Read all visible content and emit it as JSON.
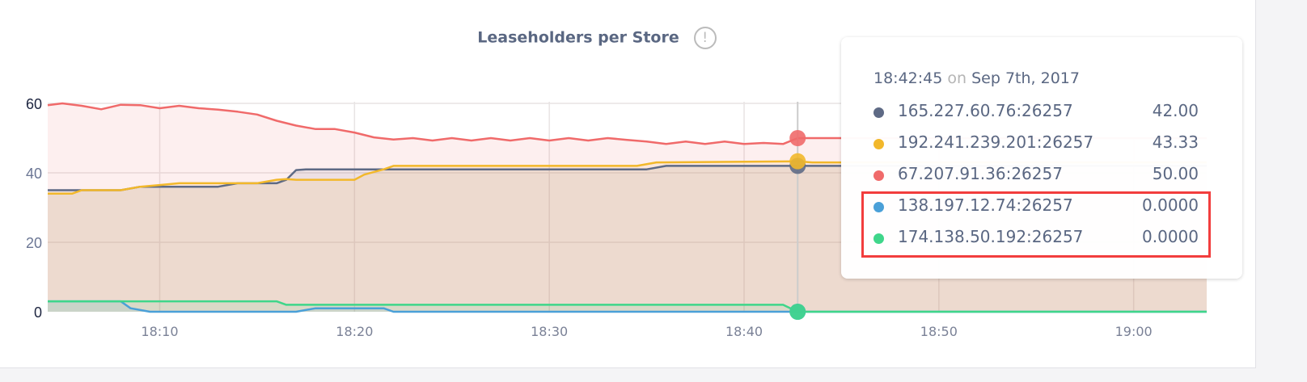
{
  "chart_data": {
    "type": "area",
    "title": "Leaseholders per Store",
    "title_icon": "info-exclamation-icon",
    "xlabel": "",
    "ylabel": "",
    "x_range": [
      "18:04:15",
      "19:03:45"
    ],
    "ylim": [
      0,
      60
    ],
    "y_ticks": [
      "0",
      "20",
      "40",
      "60"
    ],
    "x_ticks": [
      "18:10",
      "18:20",
      "18:30",
      "18:40",
      "18:50",
      "19:00"
    ],
    "grid": true,
    "hover_time": "18:42:45",
    "series": [
      {
        "name": "165.227.60.76:26257",
        "color": "#5e6a85",
        "points": [
          [
            "18:04:15",
            35
          ],
          [
            "18:08:00",
            35
          ],
          [
            "18:09:00",
            36
          ],
          [
            "18:13:00",
            36
          ],
          [
            "18:14:00",
            37
          ],
          [
            "18:16:00",
            37
          ],
          [
            "18:16:30",
            38
          ],
          [
            "18:17:00",
            40.8
          ],
          [
            "18:17:30",
            41
          ],
          [
            "18:35:00",
            41
          ],
          [
            "18:36:00",
            42
          ],
          [
            "19:03:45",
            42
          ]
        ]
      },
      {
        "name": "192.241.239.201:26257",
        "color": "#f2b82b",
        "points": [
          [
            "18:04:15",
            34
          ],
          [
            "18:05:30",
            34
          ],
          [
            "18:06:00",
            35
          ],
          [
            "18:08:00",
            35
          ],
          [
            "18:09:00",
            36
          ],
          [
            "18:10:00",
            36.5
          ],
          [
            "18:11:00",
            37
          ],
          [
            "18:15:00",
            37
          ],
          [
            "18:16:00",
            38
          ],
          [
            "18:16:30",
            38.2
          ],
          [
            "18:17:00",
            38
          ],
          [
            "18:20:00",
            38
          ],
          [
            "18:20:30",
            39.5
          ],
          [
            "18:21:30",
            41
          ],
          [
            "18:22:00",
            42
          ],
          [
            "18:34:30",
            42
          ],
          [
            "18:35:30",
            43
          ],
          [
            "18:42:45",
            43.33
          ],
          [
            "18:43:30",
            43
          ],
          [
            "19:03:45",
            43
          ]
        ]
      },
      {
        "name": "67.207.91.36:26257",
        "color": "#f06a6a",
        "points": [
          [
            "18:04:15",
            59.5
          ],
          [
            "18:05:00",
            60
          ],
          [
            "18:06:00",
            59.3
          ],
          [
            "18:07:00",
            58.3
          ],
          [
            "18:08:00",
            59.6
          ],
          [
            "18:09:00",
            59.5
          ],
          [
            "18:10:00",
            58.6
          ],
          [
            "18:11:00",
            59.3
          ],
          [
            "18:12:00",
            58.6
          ],
          [
            "18:13:00",
            58.2
          ],
          [
            "18:14:00",
            57.6
          ],
          [
            "18:15:00",
            56.8
          ],
          [
            "18:16:00",
            55
          ],
          [
            "18:17:00",
            53.6
          ],
          [
            "18:18:00",
            52.6
          ],
          [
            "18:19:00",
            52.6
          ],
          [
            "18:20:00",
            51.6
          ],
          [
            "18:21:00",
            50.2
          ],
          [
            "18:22:00",
            49.6
          ],
          [
            "18:23:00",
            50
          ],
          [
            "18:24:00",
            49.3
          ],
          [
            "18:25:00",
            50
          ],
          [
            "18:26:00",
            49.3
          ],
          [
            "18:27:00",
            50
          ],
          [
            "18:28:00",
            49.3
          ],
          [
            "18:29:00",
            50
          ],
          [
            "18:30:00",
            49.3
          ],
          [
            "18:31:00",
            50
          ],
          [
            "18:32:00",
            49.3
          ],
          [
            "18:33:00",
            50
          ],
          [
            "18:34:00",
            49.5
          ],
          [
            "18:35:00",
            49
          ],
          [
            "18:36:00",
            48.3
          ],
          [
            "18:37:00",
            49
          ],
          [
            "18:38:00",
            48.3
          ],
          [
            "18:39:00",
            49
          ],
          [
            "18:40:00",
            48.3
          ],
          [
            "18:41:00",
            48.6
          ],
          [
            "18:42:00",
            48.3
          ],
          [
            "18:42:45",
            50
          ],
          [
            "19:03:45",
            50
          ]
        ]
      },
      {
        "name": "138.197.12.74:26257",
        "color": "#4aa0d8",
        "points": [
          [
            "18:04:15",
            3
          ],
          [
            "18:08:00",
            3
          ],
          [
            "18:08:30",
            1
          ],
          [
            "18:09:30",
            0
          ],
          [
            "18:17:00",
            0
          ],
          [
            "18:18:00",
            1
          ],
          [
            "18:21:30",
            1
          ],
          [
            "18:22:00",
            0
          ],
          [
            "19:03:45",
            0
          ]
        ]
      },
      {
        "name": "174.138.50.192:26257",
        "color": "#3fd68a",
        "points": [
          [
            "18:04:15",
            3
          ],
          [
            "18:16:00",
            3
          ],
          [
            "18:16:30",
            2
          ],
          [
            "18:42:00",
            2
          ],
          [
            "18:42:45",
            0
          ],
          [
            "19:03:45",
            0
          ]
        ]
      }
    ]
  },
  "tooltip": {
    "time": "18:42:45",
    "on": "on",
    "date": "Sep 7th, 2017",
    "rows": [
      {
        "label": "165.227.60.76:26257",
        "value": "42.00",
        "color": "#5e6a85"
      },
      {
        "label": "192.241.239.201:26257",
        "value": "43.33",
        "color": "#f2b82b"
      },
      {
        "label": "67.207.91.36:26257",
        "value": "50.00",
        "color": "#f06a6a"
      },
      {
        "label": "138.197.12.74:26257",
        "value": "0.0000",
        "color": "#4aa0d8"
      },
      {
        "label": "174.138.50.192:26257",
        "value": "0.0000",
        "color": "#3fd68a"
      }
    ],
    "highlight_color": "#f23d3d"
  }
}
